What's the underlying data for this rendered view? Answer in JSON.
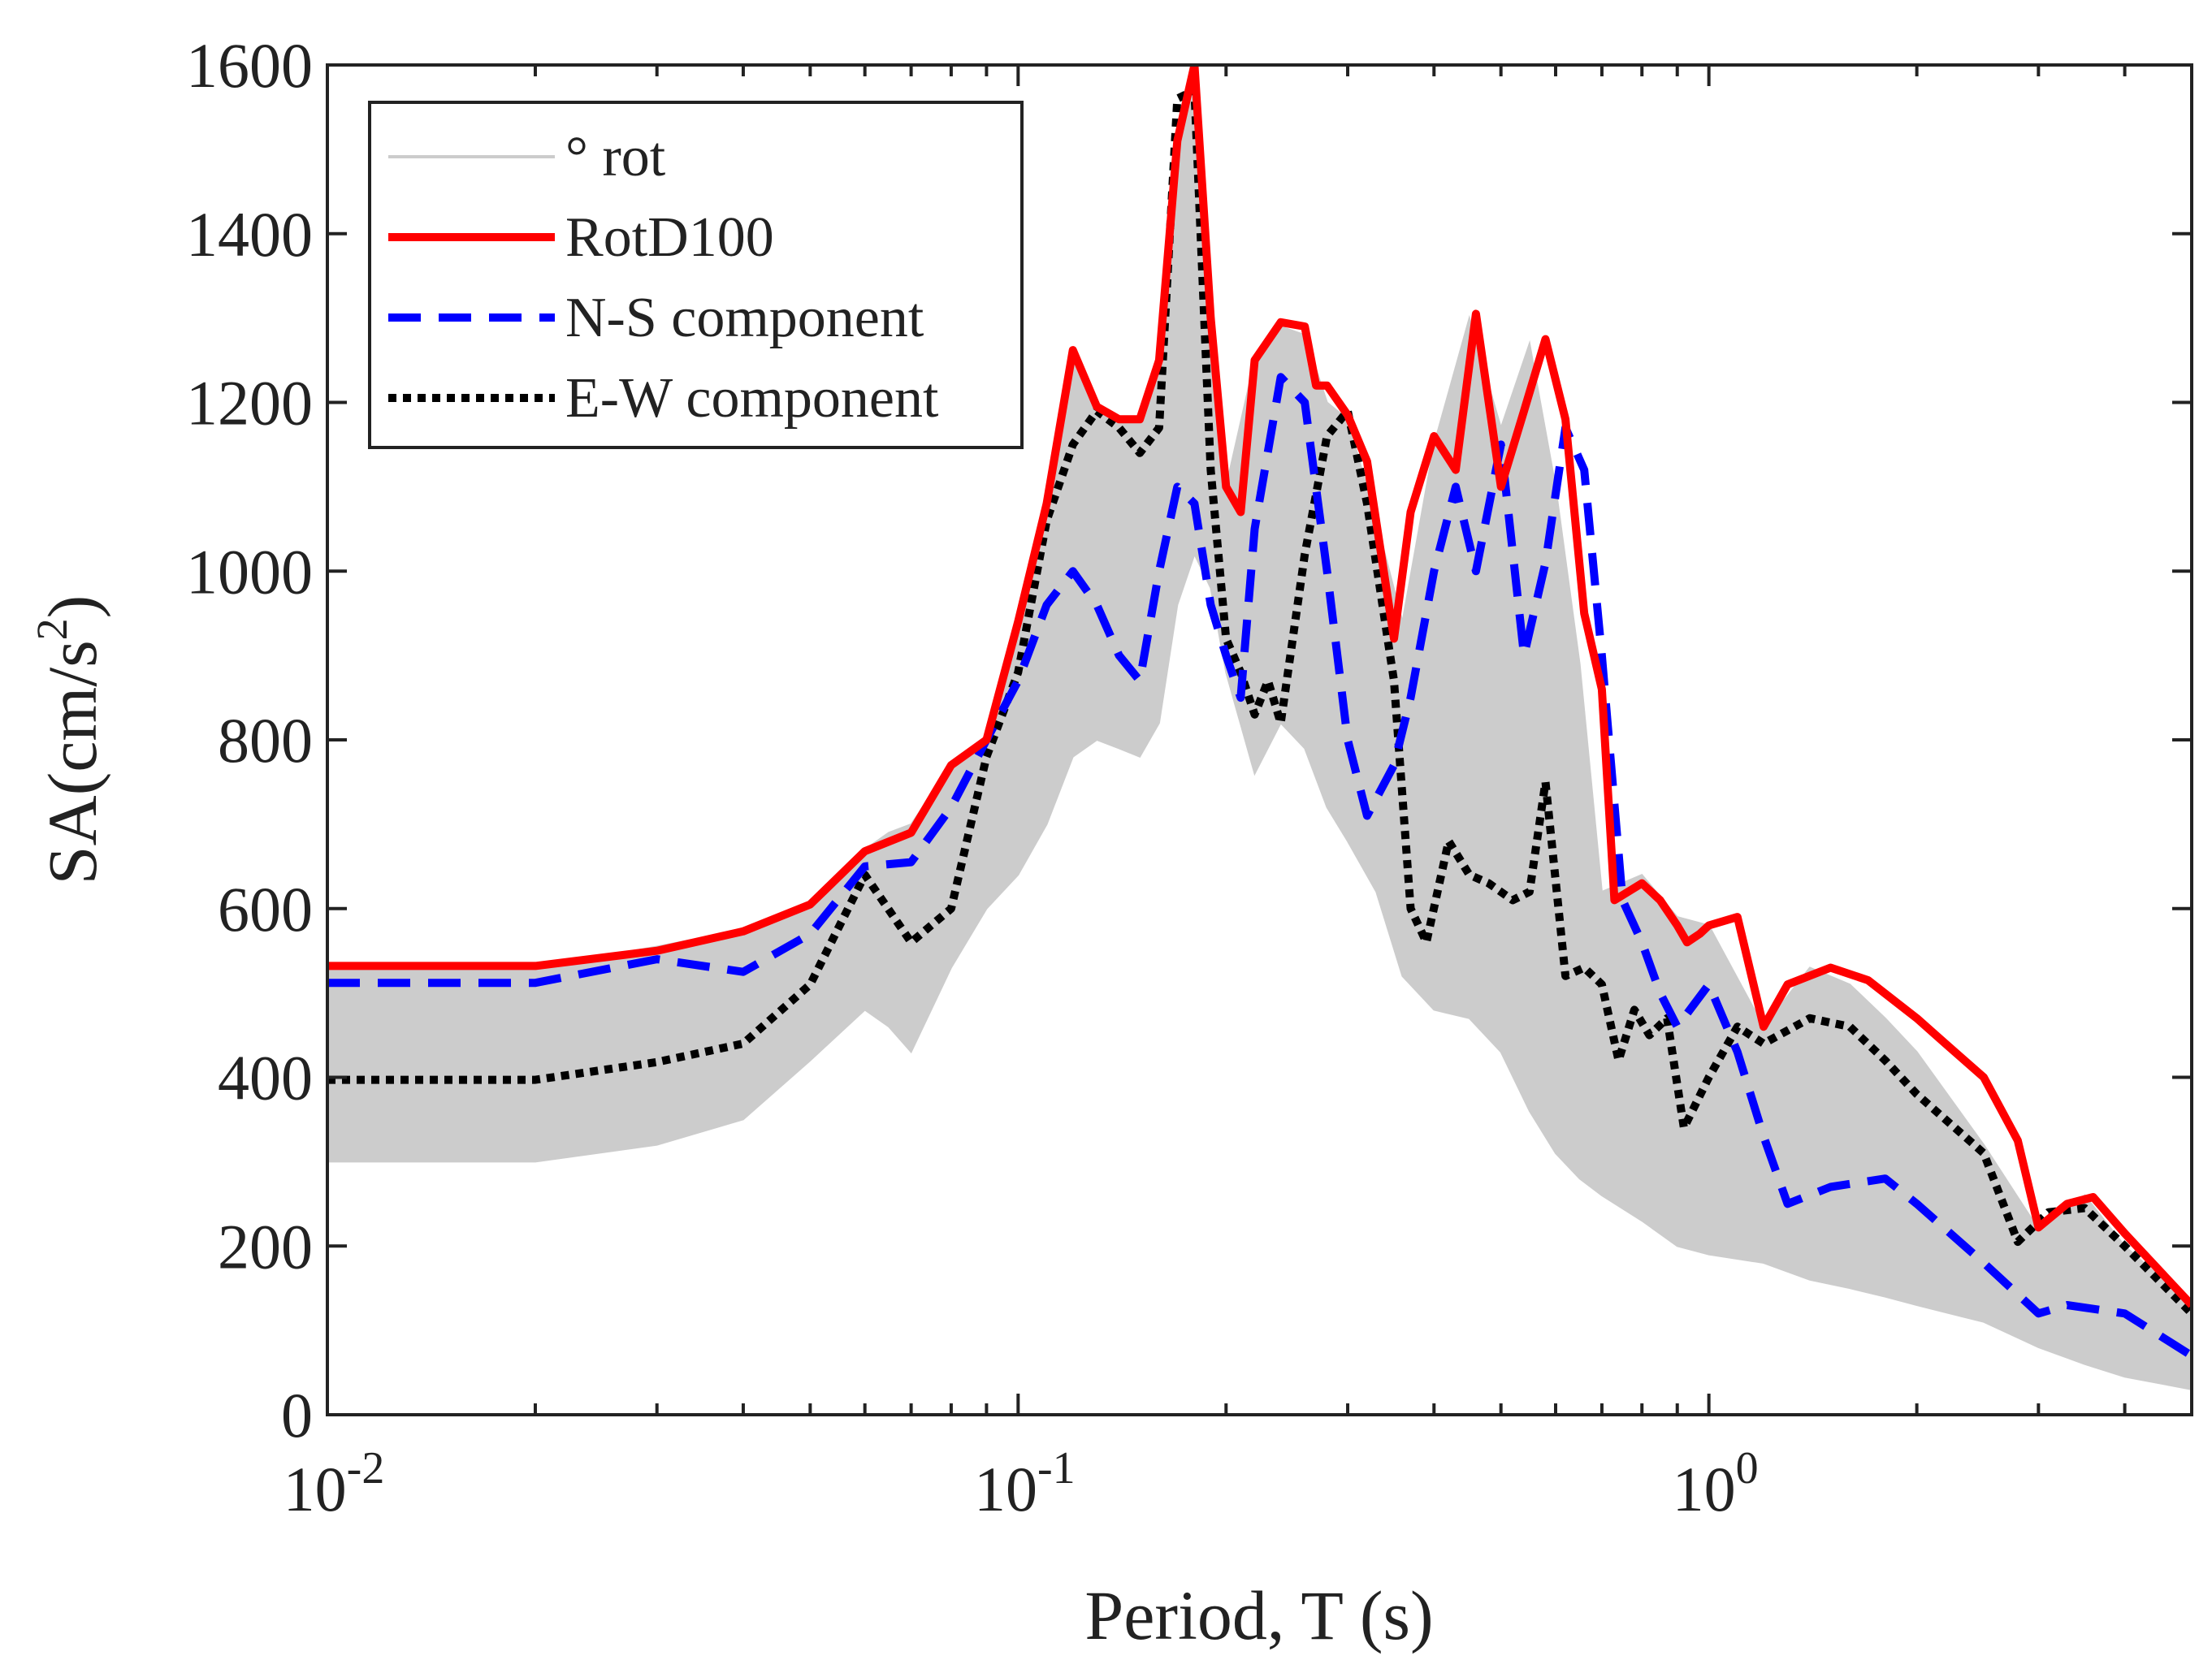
{
  "chart_data": {
    "type": "line",
    "title": "",
    "xlabel": "Period, T (s)",
    "ylabel_main": "SA(cm/s",
    "ylabel_sup": "2",
    "ylabel_close": ")",
    "x_scale": "log",
    "xlim": [
      0.01,
      5
    ],
    "ylim": [
      0,
      1600
    ],
    "grid": false,
    "legend_position": "top-left",
    "x_ticks": [
      {
        "value": 0.01,
        "base": "10",
        "exp": "-2"
      },
      {
        "value": 0.1,
        "base": "10",
        "exp": "-1"
      },
      {
        "value": 1,
        "base": "10",
        "exp": "0"
      }
    ],
    "y_ticks": [
      "0",
      "200",
      "400",
      "600",
      "800",
      "1000",
      "1200",
      "1400",
      "1600"
    ],
    "band": {
      "name": "° rot",
      "color": "#cccccc",
      "x": [
        0.01,
        0.02,
        0.03,
        0.04,
        0.05,
        0.06,
        0.065,
        0.07,
        0.08,
        0.09,
        0.1,
        0.11,
        0.12,
        0.13,
        0.14,
        0.15,
        0.16,
        0.17,
        0.18,
        0.19,
        0.2,
        0.22,
        0.24,
        0.26,
        0.28,
        0.3,
        0.33,
        0.36,
        0.4,
        0.45,
        0.5,
        0.55,
        0.6,
        0.65,
        0.7,
        0.8,
        0.9,
        1.0,
        1.2,
        1.4,
        1.6,
        1.8,
        2.0,
        2.5,
        3.0,
        3.5,
        4.0,
        5.0
      ],
      "lower": [
        300,
        300,
        320,
        350,
        420,
        480,
        460,
        430,
        530,
        600,
        640,
        700,
        780,
        800,
        790,
        780,
        820,
        960,
        1020,
        980,
        880,
        760,
        820,
        790,
        720,
        680,
        620,
        520,
        480,
        470,
        430,
        360,
        310,
        280,
        260,
        230,
        200,
        190,
        180,
        160,
        150,
        140,
        130,
        110,
        80,
        60,
        45,
        30
      ],
      "upper": [
        530,
        530,
        555,
        575,
        605,
        670,
        690,
        700,
        770,
        800,
        940,
        1080,
        1260,
        1200,
        1180,
        1180,
        1250,
        1520,
        1600,
        1320,
        1100,
        1250,
        1290,
        1280,
        1200,
        1180,
        1060,
        940,
        1150,
        1300,
        1170,
        1270,
        1100,
        890,
        620,
        640,
        590,
        580,
        460,
        530,
        510,
        470,
        430,
        320,
        220,
        260,
        200,
        130
      ]
    },
    "series": [
      {
        "name": "RotD100",
        "color": "#ff0000",
        "dash": "solid",
        "x": [
          0.01,
          0.02,
          0.03,
          0.04,
          0.05,
          0.06,
          0.07,
          0.08,
          0.09,
          0.1,
          0.11,
          0.12,
          0.13,
          0.14,
          0.15,
          0.16,
          0.17,
          0.18,
          0.19,
          0.2,
          0.21,
          0.22,
          0.24,
          0.26,
          0.27,
          0.28,
          0.3,
          0.32,
          0.35,
          0.37,
          0.4,
          0.43,
          0.46,
          0.5,
          0.54,
          0.58,
          0.62,
          0.66,
          0.7,
          0.73,
          0.8,
          0.85,
          0.9,
          0.93,
          0.97,
          1.0,
          1.1,
          1.2,
          1.3,
          1.5,
          1.7,
          2.0,
          2.2,
          2.5,
          2.8,
          3.0,
          3.3,
          3.6,
          4.0,
          5.0
        ],
        "values": [
          532,
          532,
          550,
          573,
          605,
          668,
          690,
          770,
          800,
          940,
          1080,
          1262,
          1195,
          1180,
          1180,
          1250,
          1510,
          1600,
          1300,
          1100,
          1070,
          1250,
          1295,
          1290,
          1220,
          1220,
          1185,
          1130,
          920,
          1070,
          1160,
          1120,
          1305,
          1100,
          1190,
          1275,
          1180,
          950,
          860,
          610,
          630,
          610,
          580,
          560,
          570,
          580,
          590,
          460,
          510,
          530,
          515,
          470,
          440,
          400,
          325,
          222,
          250,
          258,
          215,
          130
        ]
      },
      {
        "name": "N-S component",
        "color": "#0000ff",
        "dash": "dash",
        "x": [
          0.01,
          0.02,
          0.03,
          0.04,
          0.05,
          0.06,
          0.07,
          0.08,
          0.09,
          0.1,
          0.11,
          0.12,
          0.13,
          0.14,
          0.15,
          0.16,
          0.17,
          0.18,
          0.19,
          0.2,
          0.21,
          0.22,
          0.24,
          0.26,
          0.28,
          0.3,
          0.32,
          0.35,
          0.37,
          0.4,
          0.43,
          0.46,
          0.5,
          0.54,
          0.58,
          0.62,
          0.66,
          0.7,
          0.75,
          0.8,
          0.85,
          0.9,
          1.0,
          1.1,
          1.2,
          1.3,
          1.5,
          1.8,
          2.0,
          2.5,
          3.0,
          3.3,
          4.0,
          5.0
        ],
        "values": [
          512,
          512,
          540,
          525,
          570,
          650,
          655,
          720,
          800,
          870,
          960,
          1000,
          960,
          900,
          870,
          1000,
          1100,
          1080,
          960,
          900,
          850,
          1050,
          1230,
          1200,
          1000,
          800,
          710,
          770,
          850,
          1000,
          1100,
          1000,
          1150,
          900,
          1010,
          1170,
          1120,
          900,
          610,
          560,
          500,
          460,
          510,
          430,
          330,
          250,
          270,
          280,
          250,
          180,
          120,
          130,
          120,
          70
        ]
      },
      {
        "name": "E-W component",
        "color": "#000000",
        "dash": "dot",
        "x": [
          0.01,
          0.02,
          0.03,
          0.04,
          0.05,
          0.06,
          0.07,
          0.08,
          0.09,
          0.1,
          0.11,
          0.12,
          0.13,
          0.14,
          0.15,
          0.16,
          0.17,
          0.18,
          0.19,
          0.2,
          0.21,
          0.22,
          0.23,
          0.24,
          0.26,
          0.28,
          0.3,
          0.32,
          0.35,
          0.37,
          0.39,
          0.42,
          0.45,
          0.48,
          0.52,
          0.55,
          0.58,
          0.62,
          0.66,
          0.7,
          0.74,
          0.78,
          0.82,
          0.87,
          0.92,
          1.0,
          1.1,
          1.2,
          1.4,
          1.6,
          1.8,
          2.0,
          2.5,
          2.8,
          3.1,
          3.5,
          4.0,
          5.0
        ],
        "values": [
          397,
          397,
          418,
          440,
          510,
          640,
          560,
          600,
          780,
          880,
          1060,
          1150,
          1190,
          1170,
          1140,
          1170,
          1560,
          1570,
          1120,
          920,
          880,
          830,
          870,
          820,
          1020,
          1160,
          1190,
          1080,
          870,
          600,
          560,
          680,
          640,
          630,
          610,
          620,
          750,
          520,
          530,
          510,
          420,
          480,
          450,
          470,
          340,
          400,
          460,
          440,
          470,
          460,
          420,
          380,
          310,
          205,
          240,
          245,
          200,
          120
        ]
      }
    ]
  }
}
